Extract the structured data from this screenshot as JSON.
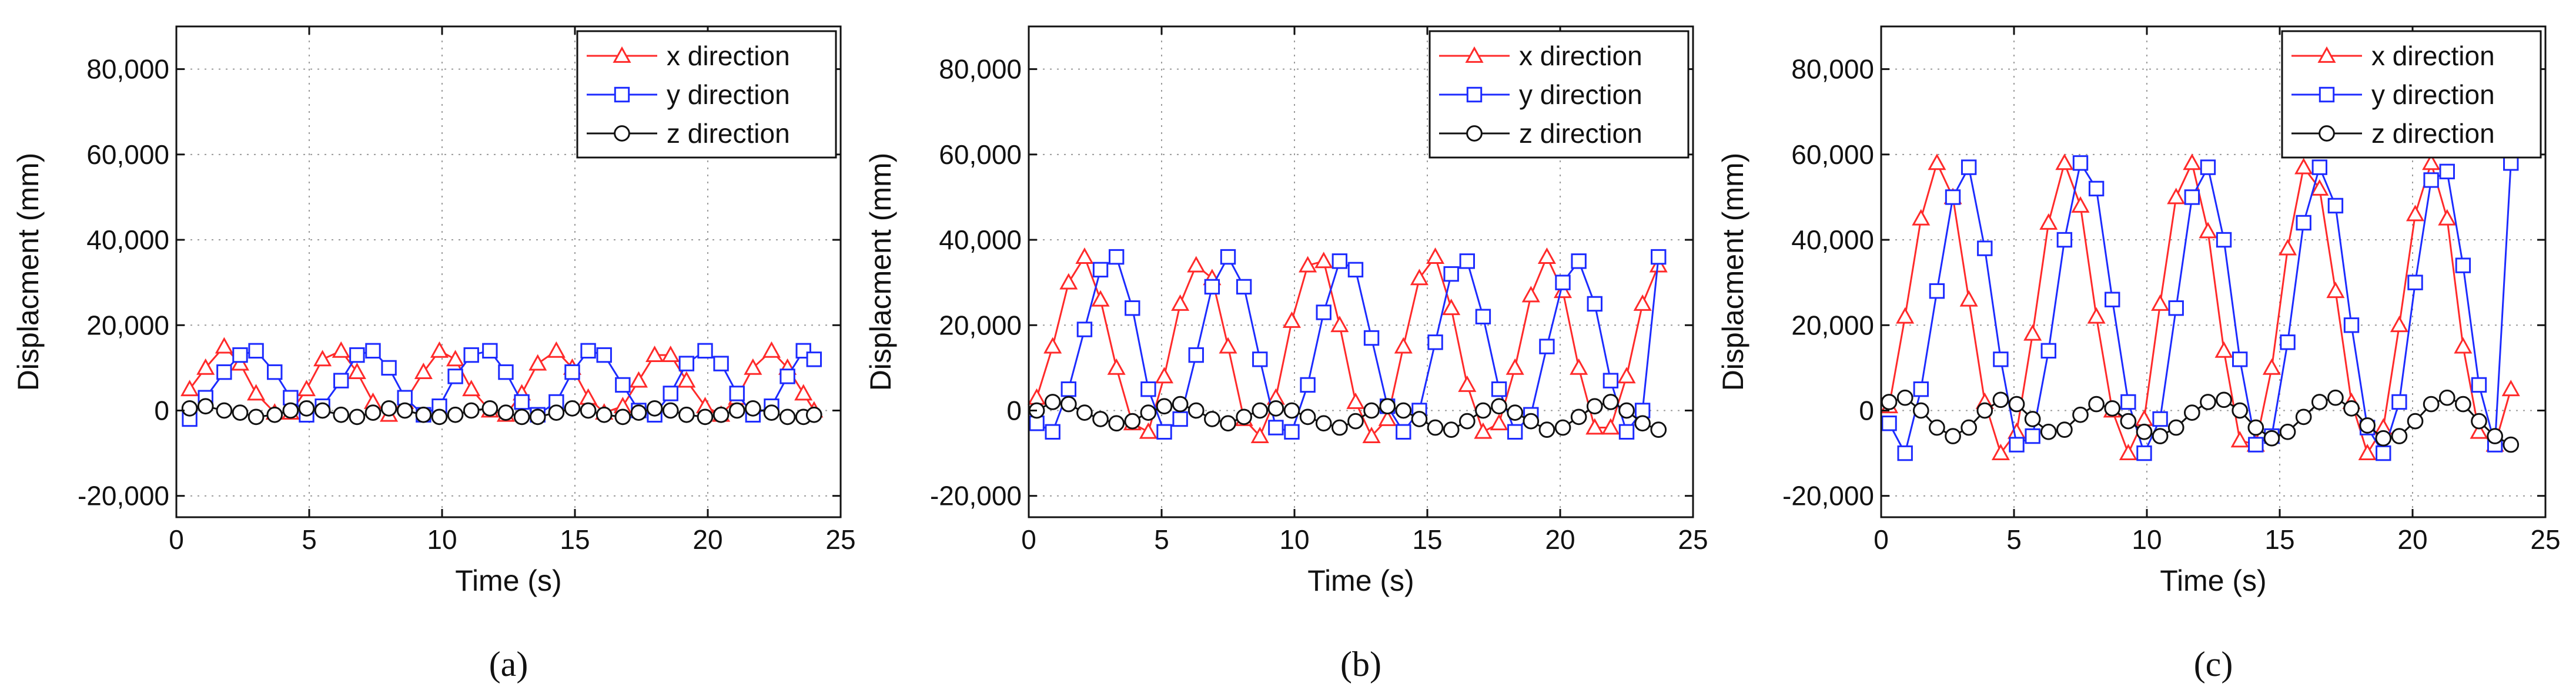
{
  "chart_data": [
    {
      "type": "line",
      "panel": "a",
      "title": "",
      "xlabel": "Time (s)",
      "ylabel": "Displacment (mm)",
      "xlim": [
        0,
        25
      ],
      "ylim": [
        -25000,
        90000
      ],
      "xticks": [
        0,
        5,
        10,
        15,
        20,
        25
      ],
      "yticks": [
        -20000,
        0,
        20000,
        40000,
        60000,
        80000
      ],
      "xtick_labels": [
        "0",
        "5",
        "10",
        "15",
        "20",
        "25"
      ],
      "ytick_labels": [
        "-20,000",
        "0",
        "20,000",
        "40,000",
        "60,000",
        "80,000"
      ],
      "grid": true,
      "legend_position": "top-right",
      "series": [
        {
          "name": "x direction",
          "color": "#ff2a2a",
          "marker": "triangle",
          "x": [
            0.5,
            1.1,
            1.8,
            2.4,
            3.0,
            3.7,
            4.3,
            4.9,
            5.5,
            6.2,
            6.8,
            7.4,
            8.0,
            8.6,
            9.3,
            9.9,
            10.5,
            11.1,
            11.8,
            12.4,
            13.0,
            13.6,
            14.3,
            14.9,
            15.5,
            16.1,
            16.8,
            17.4,
            18.0,
            18.6,
            19.2,
            19.9,
            20.5,
            21.1,
            21.7,
            22.4,
            23.0,
            23.6,
            24.0
          ],
          "y": [
            5000,
            10000,
            15000,
            11000,
            4000,
            -500,
            -500,
            5000,
            12000,
            14000,
            9000,
            2000,
            -1000,
            2000,
            9000,
            14000,
            12000,
            5000,
            0,
            -1000,
            4000,
            11000,
            14000,
            10000,
            3000,
            -500,
            1000,
            7000,
            13000,
            13000,
            7000,
            1000,
            -1000,
            3000,
            10000,
            14000,
            10000,
            4000,
            0
          ]
        },
        {
          "name": "y direction",
          "color": "#1c2bff",
          "marker": "square",
          "x": [
            0.5,
            1.1,
            1.8,
            2.4,
            3.0,
            3.7,
            4.3,
            4.9,
            5.5,
            6.2,
            6.8,
            7.4,
            8.0,
            8.6,
            9.3,
            9.9,
            10.5,
            11.1,
            11.8,
            12.4,
            13.0,
            13.6,
            14.3,
            14.9,
            15.5,
            16.1,
            16.8,
            17.4,
            18.0,
            18.6,
            19.2,
            19.9,
            20.5,
            21.1,
            21.7,
            22.4,
            23.0,
            23.6,
            24.0
          ],
          "y": [
            -2000,
            3000,
            9000,
            13000,
            14000,
            9000,
            3000,
            -1000,
            1000,
            7000,
            13000,
            14000,
            10000,
            3000,
            -1000,
            1000,
            8000,
            13000,
            14000,
            9000,
            2000,
            -1000,
            2000,
            9000,
            14000,
            13000,
            6000,
            0,
            -1000,
            4000,
            11000,
            14000,
            11000,
            4000,
            -1000,
            1000,
            8000,
            14000,
            12000
          ]
        },
        {
          "name": "z direction",
          "color": "#111111",
          "marker": "circle",
          "x": [
            0.5,
            1.1,
            1.8,
            2.4,
            3.0,
            3.7,
            4.3,
            4.9,
            5.5,
            6.2,
            6.8,
            7.4,
            8.0,
            8.6,
            9.3,
            9.9,
            10.5,
            11.1,
            11.8,
            12.4,
            13.0,
            13.6,
            14.3,
            14.9,
            15.5,
            16.1,
            16.8,
            17.4,
            18.0,
            18.6,
            19.2,
            19.9,
            20.5,
            21.1,
            21.7,
            22.4,
            23.0,
            23.6,
            24.0
          ],
          "y": [
            500,
            1000,
            0,
            -500,
            -1500,
            -1000,
            0,
            500,
            0,
            -1000,
            -1500,
            -500,
            500,
            0,
            -1000,
            -1500,
            -1000,
            0,
            500,
            -500,
            -1500,
            -1500,
            -500,
            500,
            0,
            -1000,
            -1500,
            -500,
            500,
            0,
            -1000,
            -1500,
            -1000,
            0,
            500,
            -500,
            -1500,
            -1500,
            -1000
          ]
        }
      ]
    },
    {
      "type": "line",
      "panel": "b",
      "title": "",
      "xlabel": "Time (s)",
      "ylabel": "Displacment (mm)",
      "xlim": [
        0,
        25
      ],
      "ylim": [
        -25000,
        90000
      ],
      "xticks": [
        0,
        5,
        10,
        15,
        20,
        25
      ],
      "yticks": [
        -20000,
        0,
        20000,
        40000,
        60000,
        80000
      ],
      "xtick_labels": [
        "0",
        "5",
        "10",
        "15",
        "20",
        "25"
      ],
      "ytick_labels": [
        "-20,000",
        "0",
        "20,000",
        "40,000",
        "60,000",
        "80,000"
      ],
      "grid": true,
      "legend_position": "top-right",
      "series": [
        {
          "name": "x direction",
          "color": "#ff2a2a",
          "marker": "triangle",
          "x": [
            0.3,
            0.9,
            1.5,
            2.1,
            2.7,
            3.3,
            3.9,
            4.5,
            5.1,
            5.7,
            6.3,
            6.9,
            7.5,
            8.1,
            8.7,
            9.3,
            9.9,
            10.5,
            11.1,
            11.7,
            12.3,
            12.9,
            13.5,
            14.1,
            14.7,
            15.3,
            15.9,
            16.5,
            17.1,
            17.7,
            18.3,
            18.9,
            19.5,
            20.1,
            20.7,
            21.3,
            21.9,
            22.5,
            23.1,
            23.7
          ],
          "y": [
            3000,
            15000,
            30000,
            36000,
            26000,
            10000,
            -3000,
            -5000,
            8000,
            25000,
            34000,
            31000,
            15000,
            -2000,
            -6000,
            3000,
            21000,
            34000,
            35000,
            20000,
            2000,
            -6000,
            -2000,
            15000,
            31000,
            36000,
            24000,
            6000,
            -5000,
            -3000,
            10000,
            27000,
            36000,
            28000,
            10000,
            -4000,
            -4000,
            8000,
            25000,
            34000
          ]
        },
        {
          "name": "y direction",
          "color": "#1c2bff",
          "marker": "square",
          "x": [
            0.3,
            0.9,
            1.5,
            2.1,
            2.7,
            3.3,
            3.9,
            4.5,
            5.1,
            5.7,
            6.3,
            6.9,
            7.5,
            8.1,
            8.7,
            9.3,
            9.9,
            10.5,
            11.1,
            11.7,
            12.3,
            12.9,
            13.5,
            14.1,
            14.7,
            15.3,
            15.9,
            16.5,
            17.1,
            17.7,
            18.3,
            18.9,
            19.5,
            20.1,
            20.7,
            21.3,
            21.9,
            22.5,
            23.1,
            23.7
          ],
          "y": [
            -3000,
            -5000,
            5000,
            19000,
            33000,
            36000,
            24000,
            5000,
            -5000,
            -2000,
            13000,
            29000,
            36000,
            29000,
            12000,
            -4000,
            -5000,
            6000,
            23000,
            35000,
            33000,
            17000,
            1000,
            -5000,
            0,
            16000,
            32000,
            35000,
            22000,
            5000,
            -5000,
            -1000,
            15000,
            30000,
            35000,
            25000,
            7000,
            -5000,
            0,
            36000
          ]
        },
        {
          "name": "z direction",
          "color": "#111111",
          "marker": "circle",
          "x": [
            0.3,
            0.9,
            1.5,
            2.1,
            2.7,
            3.3,
            3.9,
            4.5,
            5.1,
            5.7,
            6.3,
            6.9,
            7.5,
            8.1,
            8.7,
            9.3,
            9.9,
            10.5,
            11.1,
            11.7,
            12.3,
            12.9,
            13.5,
            14.1,
            14.7,
            15.3,
            15.9,
            16.5,
            17.1,
            17.7,
            18.3,
            18.9,
            19.5,
            20.1,
            20.7,
            21.3,
            21.9,
            22.5,
            23.1,
            23.7
          ],
          "y": [
            0,
            2000,
            1500,
            -500,
            -2000,
            -3000,
            -2500,
            -500,
            1000,
            1500,
            0,
            -2000,
            -3000,
            -1500,
            0,
            500,
            0,
            -1500,
            -3000,
            -4000,
            -2500,
            0,
            1000,
            0,
            -2000,
            -4000,
            -4500,
            -2500,
            0,
            1000,
            -500,
            -2500,
            -4500,
            -4000,
            -1500,
            1000,
            2000,
            0,
            -3000,
            -4500
          ]
        }
      ]
    },
    {
      "type": "line",
      "panel": "c",
      "title": "",
      "xlabel": "Time (s)",
      "ylabel": "Displacment (mm)",
      "xlim": [
        0,
        25
      ],
      "ylim": [
        -25000,
        90000
      ],
      "xticks": [
        0,
        5,
        10,
        15,
        20,
        25
      ],
      "yticks": [
        -20000,
        0,
        20000,
        40000,
        60000,
        80000
      ],
      "xtick_labels": [
        "0",
        "5",
        "10",
        "15",
        "20",
        "25"
      ],
      "ytick_labels": [
        "-20,000",
        "0",
        "20,000",
        "40,000",
        "60,000",
        "80,000"
      ],
      "grid": true,
      "legend_position": "top-right",
      "series": [
        {
          "name": "x direction",
          "color": "#ff2a2a",
          "marker": "triangle",
          "x": [
            0.3,
            0.9,
            1.5,
            2.1,
            2.7,
            3.3,
            3.9,
            4.5,
            5.1,
            5.7,
            6.3,
            6.9,
            7.5,
            8.1,
            8.7,
            9.3,
            9.9,
            10.5,
            11.1,
            11.7,
            12.3,
            12.9,
            13.5,
            14.1,
            14.7,
            15.3,
            15.9,
            16.5,
            17.1,
            17.7,
            18.3,
            18.9,
            19.5,
            20.1,
            20.7,
            21.3,
            21.9,
            22.5,
            23.1,
            23.7
          ],
          "y": [
            1000,
            22000,
            45000,
            58000,
            50000,
            26000,
            2000,
            -10000,
            -5000,
            18000,
            44000,
            58000,
            48000,
            22000,
            0,
            -10000,
            -2000,
            25000,
            50000,
            58000,
            42000,
            14000,
            -7000,
            -8000,
            10000,
            38000,
            57000,
            52000,
            28000,
            2000,
            -10000,
            -4000,
            20000,
            46000,
            58000,
            45000,
            15000,
            -5000,
            -8000,
            5000
          ]
        },
        {
          "name": "y direction",
          "color": "#1c2bff",
          "marker": "square",
          "x": [
            0.3,
            0.9,
            1.5,
            2.1,
            2.7,
            3.3,
            3.9,
            4.5,
            5.1,
            5.7,
            6.3,
            6.9,
            7.5,
            8.1,
            8.7,
            9.3,
            9.9,
            10.5,
            11.1,
            11.7,
            12.3,
            12.9,
            13.5,
            14.1,
            14.7,
            15.3,
            15.9,
            16.5,
            17.1,
            17.7,
            18.3,
            18.9,
            19.5,
            20.1,
            20.7,
            21.3,
            21.9,
            22.5,
            23.1,
            23.7
          ],
          "y": [
            -3000,
            -10000,
            5000,
            28000,
            50000,
            57000,
            38000,
            12000,
            -8000,
            -6000,
            14000,
            40000,
            58000,
            52000,
            26000,
            2000,
            -10000,
            -2000,
            24000,
            50000,
            57000,
            40000,
            12000,
            -8000,
            -6000,
            16000,
            44000,
            57000,
            48000,
            20000,
            -4000,
            -10000,
            2000,
            30000,
            54000,
            56000,
            34000,
            6000,
            -8000,
            58000
          ]
        },
        {
          "name": "z direction",
          "color": "#111111",
          "marker": "circle",
          "x": [
            0.3,
            0.9,
            1.5,
            2.1,
            2.7,
            3.3,
            3.9,
            4.5,
            5.1,
            5.7,
            6.3,
            6.9,
            7.5,
            8.1,
            8.7,
            9.3,
            9.9,
            10.5,
            11.1,
            11.7,
            12.3,
            12.9,
            13.5,
            14.1,
            14.7,
            15.3,
            15.9,
            16.5,
            17.1,
            17.7,
            18.3,
            18.9,
            19.5,
            20.1,
            20.7,
            21.3,
            21.9,
            22.5,
            23.1,
            23.7
          ],
          "y": [
            2000,
            3000,
            0,
            -4000,
            -6000,
            -4000,
            0,
            2500,
            1500,
            -2000,
            -5000,
            -4500,
            -1000,
            1500,
            500,
            -2500,
            -5000,
            -6000,
            -4000,
            -500,
            2000,
            2500,
            0,
            -4000,
            -6500,
            -5000,
            -1500,
            2000,
            3000,
            500,
            -3500,
            -6500,
            -6000,
            -2500,
            1500,
            3000,
            1500,
            -2500,
            -6000,
            -8000
          ]
        }
      ]
    }
  ],
  "panel_labels": [
    "(a)",
    "(b)",
    "(c)"
  ],
  "colors": {
    "x": "#ff2a2a",
    "y": "#1c2bff",
    "z": "#111111",
    "grid": "#9a9a9a",
    "axis": "#111111"
  }
}
